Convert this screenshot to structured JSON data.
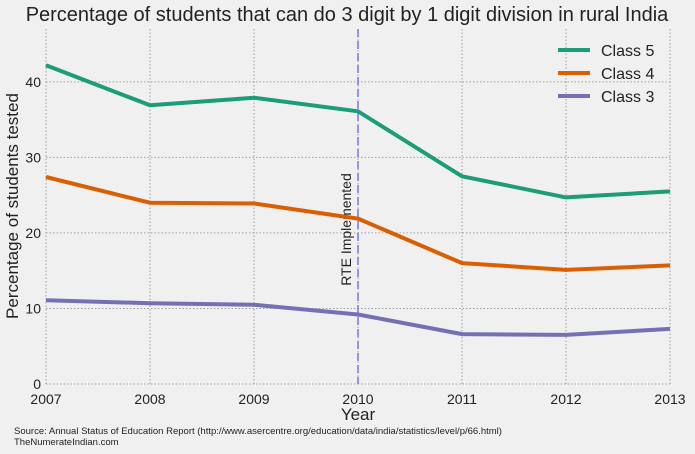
{
  "chart_data": {
    "type": "line",
    "title": "Percentage of students that can do 3 digit by 1 digit division in rural India",
    "xlabel": "Year",
    "ylabel": "Percentage of students tested",
    "x": [
      2007,
      2008,
      2009,
      2010,
      2011,
      2012,
      2013
    ],
    "xlim": [
      2007,
      2013
    ],
    "ylim": [
      0,
      47
    ],
    "x_ticks": [
      "2007",
      "2008",
      "2009",
      "2010",
      "2011",
      "2012",
      "2013"
    ],
    "y_ticks": [
      0,
      10,
      20,
      30,
      40
    ],
    "grid": true,
    "legend_position": "top-right",
    "series": [
      {
        "name": "Class 5",
        "color": "#1b9e77",
        "values": [
          42.2,
          36.9,
          37.9,
          36.1,
          27.5,
          24.7,
          25.5
        ]
      },
      {
        "name": "Class 4",
        "color": "#d95f02",
        "values": [
          27.4,
          24.0,
          23.9,
          21.9,
          16.0,
          15.1,
          15.7
        ]
      },
      {
        "name": "Class 3",
        "color": "#7570b3",
        "values": [
          11.1,
          10.7,
          10.5,
          9.2,
          6.6,
          6.5,
          7.3
        ]
      }
    ],
    "annotation": {
      "text": "RTE Implemented",
      "x": 2010,
      "line_color": "#3a3ad8"
    }
  },
  "source_lines": [
    "Source: Annual Status of Education Report (http://www.asercentre.org/education/data/india/statistics/level/p/66.html)",
    "TheNumerateIndian.com"
  ]
}
